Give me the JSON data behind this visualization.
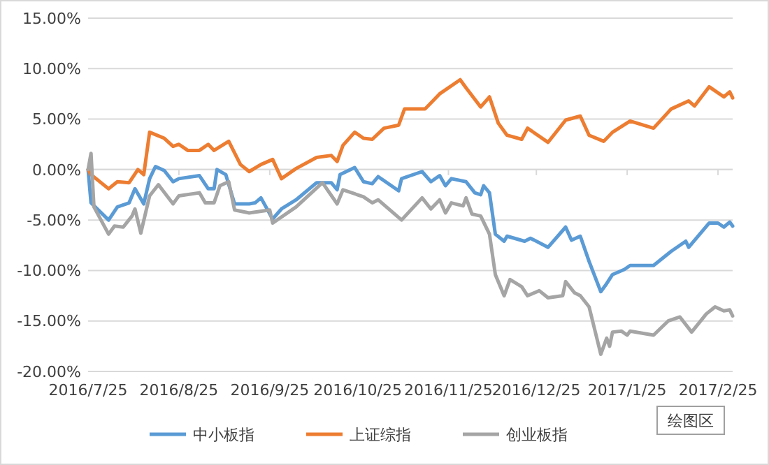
{
  "chart_data": {
    "type": "line",
    "xlim": [
      "2016-07-25",
      "2017-03-02"
    ],
    "xticks": [
      {
        "value": "2016-07-25",
        "label": "2016/7/25"
      },
      {
        "value": "2016-08-25",
        "label": "2016/8/25"
      },
      {
        "value": "2016-09-25",
        "label": "2016/9/25"
      },
      {
        "value": "2016-10-25",
        "label": "2016/10/25"
      },
      {
        "value": "2016-11-25",
        "label": "2016/11/25"
      },
      {
        "value": "2016-12-25",
        "label": "2016/12/25"
      },
      {
        "value": "2017-01-25",
        "label": "2017/1/25"
      },
      {
        "value": "2017-02-25",
        "label": "2017/2/25"
      }
    ],
    "ylim": [
      -20,
      15
    ],
    "yticks": [
      {
        "value": -20,
        "label": "-20.00%"
      },
      {
        "value": -15,
        "label": "-15.00%"
      },
      {
        "value": -10,
        "label": "-10.00%"
      },
      {
        "value": -5,
        "label": "-5.00%"
      },
      {
        "value": 0,
        "label": "0.00%"
      },
      {
        "value": 5,
        "label": "5.00%"
      },
      {
        "value": 10,
        "label": "10.00%"
      },
      {
        "value": 15,
        "label": "15.00%"
      }
    ],
    "grid": "y",
    "legend": "bottom",
    "marker": "none",
    "line_style": "solid",
    "annotations": [
      "绘图区"
    ],
    "series": [
      {
        "name": "中小板指",
        "color": "#5b9bd5",
        "x": [
          "2016-07-25",
          "2016-07-26",
          "2016-08-01",
          "2016-08-04",
          "2016-08-08",
          "2016-08-10",
          "2016-08-13",
          "2016-08-15",
          "2016-08-17",
          "2016-08-20",
          "2016-08-23",
          "2016-08-25",
          "2016-09-01",
          "2016-09-04",
          "2016-09-06",
          "2016-09-07",
          "2016-09-10",
          "2016-09-13",
          "2016-09-18",
          "2016-09-20",
          "2016-09-22",
          "2016-09-26",
          "2016-09-29",
          "2016-10-04",
          "2016-10-11",
          "2016-10-16",
          "2016-10-18",
          "2016-10-19",
          "2016-10-24",
          "2016-10-27",
          "2016-10-30",
          "2016-11-01",
          "2016-11-08",
          "2016-11-09",
          "2016-11-16",
          "2016-11-19",
          "2016-11-22",
          "2016-11-24",
          "2016-11-26",
          "2016-12-01",
          "2016-12-04",
          "2016-12-06",
          "2016-12-07",
          "2016-12-09",
          "2016-12-11",
          "2016-12-14",
          "2016-12-15",
          "2016-12-21",
          "2016-12-23",
          "2016-12-29",
          "2017-01-04",
          "2017-01-06",
          "2017-01-09",
          "2017-01-12",
          "2017-01-16",
          "2017-01-18",
          "2017-01-20",
          "2017-01-24",
          "2017-01-26",
          "2017-02-03",
          "2017-02-09",
          "2017-02-14",
          "2017-02-15",
          "2017-02-22",
          "2017-02-25",
          "2017-02-27",
          "2017-03-01",
          "2017-03-02"
        ],
        "values": [
          0,
          -3.3,
          -5.0,
          -3.7,
          -3.3,
          -1.9,
          -3.4,
          -0.9,
          0.3,
          -0.1,
          -1.2,
          -0.9,
          -0.6,
          -1.9,
          -1.9,
          0.0,
          -0.5,
          -3.4,
          -3.4,
          -3.3,
          -2.8,
          -4.9,
          -3.9,
          -3.0,
          -1.3,
          -1.3,
          -2.0,
          -0.5,
          0.2,
          -1.2,
          -1.4,
          -0.7,
          -2.1,
          -0.9,
          -0.2,
          -1.2,
          -0.6,
          -1.6,
          -0.9,
          -1.2,
          -2.3,
          -2.5,
          -1.6,
          -2.3,
          -6.4,
          -7.1,
          -6.6,
          -7.1,
          -6.8,
          -7.7,
          -5.7,
          -7.0,
          -6.6,
          -9.1,
          -12.1,
          -11.3,
          -10.4,
          -9.9,
          -9.5,
          -9.5,
          -8.1,
          -7.1,
          -7.7,
          -5.3,
          -5.3,
          -5.7,
          -5.2,
          -5.6
        ]
      },
      {
        "name": "上证综指",
        "color": "#ed7d31",
        "x": [
          "2016-07-25",
          "2016-07-26",
          "2016-08-01",
          "2016-08-04",
          "2016-08-08",
          "2016-08-11",
          "2016-08-13",
          "2016-08-15",
          "2016-08-20",
          "2016-08-23",
          "2016-08-25",
          "2016-08-28",
          "2016-09-01",
          "2016-09-04",
          "2016-09-06",
          "2016-09-11",
          "2016-09-15",
          "2016-09-18",
          "2016-09-22",
          "2016-09-26",
          "2016-09-29",
          "2016-10-04",
          "2016-10-11",
          "2016-10-16",
          "2016-10-18",
          "2016-10-20",
          "2016-10-24",
          "2016-10-27",
          "2016-10-30",
          "2016-11-03",
          "2016-11-08",
          "2016-11-10",
          "2016-11-17",
          "2016-11-22",
          "2016-11-29",
          "2016-12-01",
          "2016-12-06",
          "2016-12-09",
          "2016-12-12",
          "2016-12-15",
          "2016-12-20",
          "2016-12-22",
          "2016-12-29",
          "2017-01-04",
          "2017-01-09",
          "2017-01-12",
          "2017-01-17",
          "2017-01-20",
          "2017-01-26",
          "2017-02-03",
          "2017-02-09",
          "2017-02-15",
          "2017-02-17",
          "2017-02-22",
          "2017-02-27",
          "2017-03-01",
          "2017-03-02"
        ],
        "values": [
          0,
          -0.5,
          -1.9,
          -1.2,
          -1.3,
          0,
          -0.5,
          3.7,
          3.1,
          2.3,
          2.5,
          1.9,
          1.9,
          2.5,
          1.9,
          2.8,
          0.5,
          -0.2,
          0.5,
          1.0,
          -0.9,
          0.1,
          1.2,
          1.4,
          0.8,
          2.4,
          3.7,
          3.1,
          3.0,
          4.1,
          4.4,
          6.0,
          6.0,
          7.5,
          8.9,
          8.1,
          6.2,
          7.2,
          4.6,
          3.4,
          3.0,
          4.1,
          2.7,
          4.9,
          5.3,
          3.4,
          2.8,
          3.7,
          4.8,
          4.1,
          6.0,
          6.8,
          6.3,
          8.2,
          7.2,
          7.7,
          7.1
        ]
      },
      {
        "name": "创业板指",
        "color": "#a5a5a5",
        "x": [
          "2016-07-25",
          "2016-07-26",
          "2016-07-27",
          "2016-08-01",
          "2016-08-03",
          "2016-08-06",
          "2016-08-09",
          "2016-08-10",
          "2016-08-12",
          "2016-08-15",
          "2016-08-18",
          "2016-08-23",
          "2016-08-25",
          "2016-09-01",
          "2016-09-03",
          "2016-09-06",
          "2016-09-08",
          "2016-09-11",
          "2016-09-13",
          "2016-09-18",
          "2016-09-25",
          "2016-09-26",
          "2016-10-04",
          "2016-10-13",
          "2016-10-18",
          "2016-10-20",
          "2016-10-27",
          "2016-10-30",
          "2016-11-01",
          "2016-11-09",
          "2016-11-16",
          "2016-11-19",
          "2016-11-22",
          "2016-11-24",
          "2016-11-26",
          "2016-11-30",
          "2016-12-01",
          "2016-12-03",
          "2016-12-06",
          "2016-12-09",
          "2016-12-11",
          "2016-12-14",
          "2016-12-16",
          "2016-12-20",
          "2016-12-22",
          "2016-12-26",
          "2016-12-29",
          "2017-01-03",
          "2017-01-04",
          "2017-01-07",
          "2017-01-09",
          "2017-01-12",
          "2017-01-16",
          "2017-01-18",
          "2017-01-19",
          "2017-01-20",
          "2017-01-23",
          "2017-01-25",
          "2017-01-26",
          "2017-02-03",
          "2017-02-08",
          "2017-02-12",
          "2017-02-16",
          "2017-02-21",
          "2017-02-24",
          "2017-02-27",
          "2017-03-01",
          "2017-03-02"
        ],
        "values": [
          0,
          1.6,
          -3.7,
          -6.4,
          -5.6,
          -5.7,
          -4.6,
          -3.9,
          -6.3,
          -2.6,
          -1.5,
          -3.4,
          -2.6,
          -2.3,
          -3.3,
          -3.3,
          -1.6,
          -1.2,
          -4.0,
          -4.3,
          -4.0,
          -5.3,
          -3.7,
          -1.3,
          -3.4,
          -2.0,
          -2.7,
          -3.3,
          -3.0,
          -5.0,
          -2.8,
          -3.9,
          -3.0,
          -4.3,
          -3.3,
          -3.6,
          -2.8,
          -4.4,
          -4.6,
          -6.4,
          -10.4,
          -12.5,
          -10.9,
          -11.6,
          -12.5,
          -12.0,
          -12.7,
          -12.5,
          -11.1,
          -12.2,
          -12.5,
          -13.6,
          -18.3,
          -16.7,
          -17.5,
          -16.1,
          -16.0,
          -16.4,
          -16.0,
          -16.4,
          -15.0,
          -14.6,
          -16.1,
          -14.3,
          -13.6,
          -14.0,
          -13.9,
          -14.5
        ]
      }
    ]
  }
}
